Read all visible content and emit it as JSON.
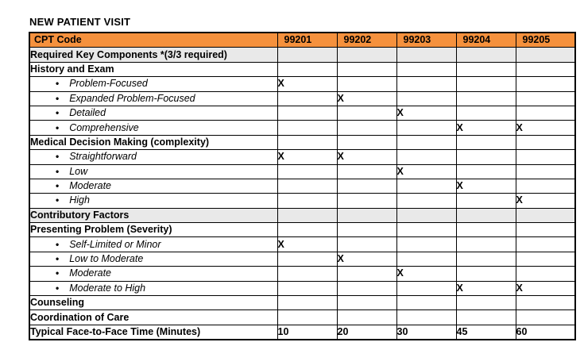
{
  "title": "NEW PATIENT VISIT",
  "colors": {
    "header_bg": "#F5913D",
    "section_gray_bg": "#E9E9E9",
    "border": "#000000",
    "text": "#000000"
  },
  "table": {
    "header": {
      "label": "CPT Code",
      "codes": [
        "99201",
        "99202",
        "99203",
        "99204",
        "99205"
      ]
    },
    "rows": [
      {
        "type": "gray",
        "label": "Required Key Components *(3/3 required)",
        "marks": [
          "",
          "",
          "",
          "",
          ""
        ]
      },
      {
        "type": "section",
        "label": "History and Exam",
        "marks": [
          "",
          "",
          "",
          "",
          ""
        ]
      },
      {
        "type": "bullet",
        "label": "Problem-Focused",
        "marks": [
          "X",
          "",
          "",
          "",
          ""
        ]
      },
      {
        "type": "bullet",
        "label": "Expanded Problem-Focused",
        "marks": [
          "",
          "X",
          "",
          "",
          ""
        ]
      },
      {
        "type": "bullet",
        "label": "Detailed",
        "marks": [
          "",
          "",
          "X",
          "",
          ""
        ]
      },
      {
        "type": "bullet",
        "label": "Comprehensive",
        "marks": [
          "",
          "",
          "",
          "X",
          "X"
        ]
      },
      {
        "type": "section",
        "label": "Medical Decision Making (complexity)",
        "marks": [
          "",
          "",
          "",
          "",
          ""
        ]
      },
      {
        "type": "bullet",
        "label": "Straightforward",
        "marks": [
          "X",
          "X",
          "",
          "",
          ""
        ]
      },
      {
        "type": "bullet",
        "label": "Low",
        "marks": [
          "",
          "",
          "X",
          "",
          ""
        ]
      },
      {
        "type": "bullet",
        "label": "Moderate",
        "marks": [
          "",
          "",
          "",
          "X",
          ""
        ]
      },
      {
        "type": "bullet",
        "label": "High",
        "marks": [
          "",
          "",
          "",
          "",
          "X"
        ]
      },
      {
        "type": "gray",
        "label": "Contributory Factors",
        "marks": [
          "",
          "",
          "",
          "",
          ""
        ]
      },
      {
        "type": "section",
        "label": "Presenting Problem (Severity)",
        "marks": [
          "",
          "",
          "",
          "",
          ""
        ]
      },
      {
        "type": "bullet",
        "label": "Self-Limited or Minor",
        "marks": [
          "X",
          "",
          "",
          "",
          ""
        ]
      },
      {
        "type": "bullet",
        "label": "Low to Moderate",
        "marks": [
          "",
          "X",
          "",
          "",
          ""
        ]
      },
      {
        "type": "bullet",
        "label": "Moderate",
        "marks": [
          "",
          "",
          "X",
          "",
          ""
        ]
      },
      {
        "type": "bullet",
        "label": "Moderate to High",
        "marks": [
          "",
          "",
          "",
          "X",
          "X"
        ]
      },
      {
        "type": "section",
        "label": "Counseling",
        "marks": [
          "",
          "",
          "",
          "",
          ""
        ]
      },
      {
        "type": "section",
        "label": "Coordination of Care",
        "marks": [
          "",
          "",
          "",
          "",
          ""
        ]
      },
      {
        "type": "section",
        "label": "Typical Face-to-Face Time (Minutes)",
        "marks": [
          "10",
          "20",
          "30",
          "45",
          "60"
        ]
      }
    ]
  }
}
